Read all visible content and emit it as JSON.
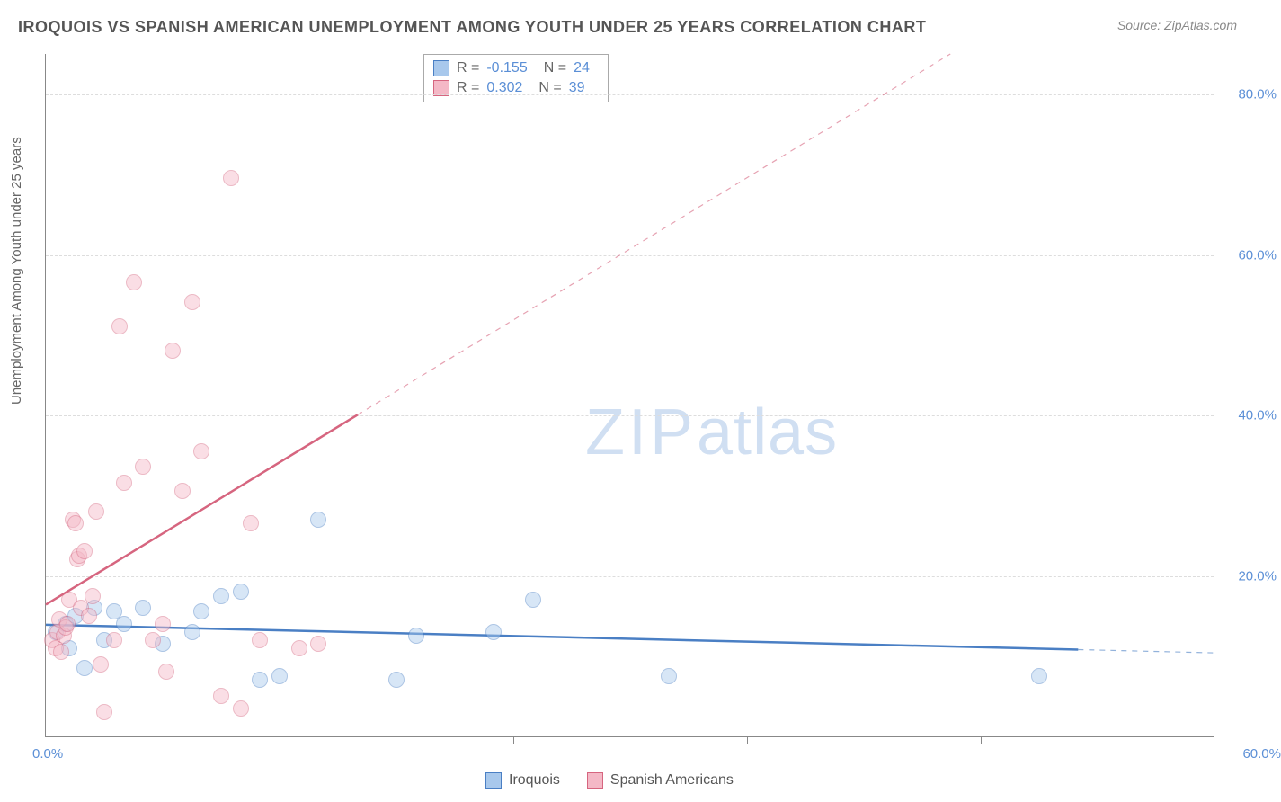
{
  "title": "IROQUOIS VS SPANISH AMERICAN UNEMPLOYMENT AMONG YOUTH UNDER 25 YEARS CORRELATION CHART",
  "source": "Source: ZipAtlas.com",
  "y_axis_label": "Unemployment Among Youth under 25 years",
  "watermark_zip": "ZIP",
  "watermark_atlas": "atlas",
  "chart": {
    "type": "scatter",
    "xlim": [
      0,
      60
    ],
    "ylim": [
      0,
      85
    ],
    "xticks": [
      0,
      60
    ],
    "xtick_labels": [
      "0.0%",
      "60.0%"
    ],
    "xtick_minor": [
      12,
      24,
      36,
      48
    ],
    "yticks": [
      20,
      40,
      60,
      80
    ],
    "ytick_labels": [
      "20.0%",
      "40.0%",
      "60.0%",
      "80.0%"
    ],
    "background_color": "#ffffff",
    "grid_color": "#dddddd",
    "axis_color": "#888888",
    "tick_label_color": "#5b8fd6",
    "marker_radius": 9,
    "marker_opacity": 0.45,
    "line_width": 2.5
  },
  "series": [
    {
      "name": "Iroquois",
      "color_fill": "#a8c8ec",
      "color_stroke": "#4a7fc4",
      "r_label": "R =",
      "r_value": "-0.155",
      "n_label": "N =",
      "n_value": "24",
      "points": [
        [
          0.5,
          13
        ],
        [
          1.0,
          14
        ],
        [
          1.2,
          11
        ],
        [
          1.5,
          15
        ],
        [
          2.0,
          8.5
        ],
        [
          2.5,
          16
        ],
        [
          3.0,
          12
        ],
        [
          3.5,
          15.5
        ],
        [
          4.0,
          14
        ],
        [
          5.0,
          16
        ],
        [
          6.0,
          11.5
        ],
        [
          7.5,
          13
        ],
        [
          8.0,
          15.5
        ],
        [
          9.0,
          17.5
        ],
        [
          10.0,
          18
        ],
        [
          11.0,
          7
        ],
        [
          12.0,
          7.5
        ],
        [
          14.0,
          27
        ],
        [
          18.0,
          7
        ],
        [
          19.0,
          12.5
        ],
        [
          23.0,
          13
        ],
        [
          25.0,
          17
        ],
        [
          32.0,
          7.5
        ],
        [
          51.0,
          7.5
        ]
      ],
      "regression": {
        "x1": 0,
        "y1": 14.0,
        "x2": 60,
        "y2": 10.5
      }
    },
    {
      "name": "Spanish Americans",
      "color_fill": "#f4b8c6",
      "color_stroke": "#d6657f",
      "r_label": "R =",
      "r_value": "0.302",
      "n_label": "N =",
      "n_value": "39",
      "points": [
        [
          0.3,
          12
        ],
        [
          0.5,
          11
        ],
        [
          0.6,
          13
        ],
        [
          0.7,
          14.5
        ],
        [
          0.8,
          10.5
        ],
        [
          0.9,
          12.5
        ],
        [
          1.0,
          13.5
        ],
        [
          1.1,
          14
        ],
        [
          1.2,
          17
        ],
        [
          1.4,
          27
        ],
        [
          1.5,
          26.5
        ],
        [
          1.6,
          22
        ],
        [
          1.7,
          22.5
        ],
        [
          1.8,
          16
        ],
        [
          2.0,
          23
        ],
        [
          2.2,
          15
        ],
        [
          2.4,
          17.5
        ],
        [
          2.6,
          28
        ],
        [
          2.8,
          9
        ],
        [
          3.0,
          3
        ],
        [
          3.5,
          12
        ],
        [
          3.8,
          51
        ],
        [
          4.0,
          31.5
        ],
        [
          4.5,
          56.5
        ],
        [
          5.0,
          33.5
        ],
        [
          5.5,
          12
        ],
        [
          6.0,
          14
        ],
        [
          6.2,
          8
        ],
        [
          6.5,
          48
        ],
        [
          7.0,
          30.5
        ],
        [
          7.5,
          54
        ],
        [
          8.0,
          35.5
        ],
        [
          9.0,
          5
        ],
        [
          9.5,
          69.5
        ],
        [
          10.0,
          3.5
        ],
        [
          10.5,
          26.5
        ],
        [
          11.0,
          12
        ],
        [
          13.0,
          11
        ],
        [
          14.0,
          11.5
        ]
      ],
      "regression": {
        "x1": 0,
        "y1": 16.5,
        "x2": 60,
        "y2": 105
      }
    }
  ],
  "bottom_legend": [
    {
      "label": "Iroquois",
      "fill": "#a8c8ec",
      "stroke": "#4a7fc4"
    },
    {
      "label": "Spanish Americans",
      "fill": "#f4b8c6",
      "stroke": "#d6657f"
    }
  ]
}
